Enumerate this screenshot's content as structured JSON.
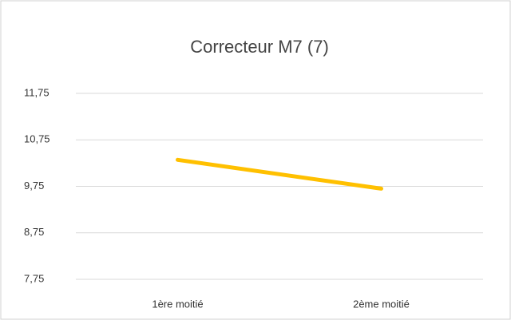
{
  "chart_data": {
    "type": "line",
    "title": "Correcteur  M7 (7)",
    "categories": [
      "1ère moitié",
      "2ème moitié"
    ],
    "series": [
      {
        "name": "Correcteur M7",
        "color": "#ffc000",
        "values": [
          10.32,
          9.7
        ]
      }
    ],
    "ylim": [
      7.75,
      11.75
    ],
    "yticks": [
      {
        "value": 7.75,
        "label": "7,75"
      },
      {
        "value": 8.75,
        "label": "8,75"
      },
      {
        "value": 9.75,
        "label": "9,75"
      },
      {
        "value": 10.75,
        "label": "10,75"
      },
      {
        "value": 11.75,
        "label": "11,75"
      }
    ],
    "grid": true
  }
}
